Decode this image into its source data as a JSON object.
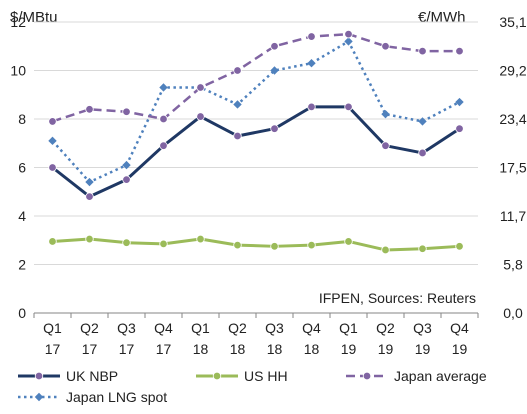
{
  "chart_data": {
    "type": "line",
    "categories": [
      [
        "Q1",
        "17"
      ],
      [
        "Q2",
        "17"
      ],
      [
        "Q3",
        "17"
      ],
      [
        "Q4",
        "17"
      ],
      [
        "Q1",
        "18"
      ],
      [
        "Q2",
        "18"
      ],
      [
        "Q3",
        "18"
      ],
      [
        "Q4",
        "18"
      ],
      [
        "Q1",
        "19"
      ],
      [
        "Q2",
        "19"
      ],
      [
        "Q3",
        "19"
      ],
      [
        "Q4",
        "19"
      ]
    ],
    "y_left": {
      "label": "$/MBtu",
      "range": [
        0,
        12
      ],
      "ticks": [
        "0",
        "2",
        "4",
        "6",
        "8",
        "10",
        "12"
      ]
    },
    "y_right": {
      "label": "€/MWh",
      "ticks": [
        "0,0",
        "5,8",
        "11,7",
        "17,5",
        "23,4",
        "29,2",
        "35,1"
      ]
    },
    "grid": "horizontal",
    "legend_position": "bottom",
    "annotation": "IFPEN, Sources: Reuters",
    "series": [
      {
        "name": "UK NBP",
        "style": "solid",
        "line_color": "#1f3864",
        "marker_color": "#8064a2",
        "values": [
          6.0,
          4.8,
          5.5,
          6.9,
          8.1,
          7.3,
          7.6,
          8.5,
          8.5,
          6.9,
          6.6,
          7.6
        ]
      },
      {
        "name": "US HH",
        "style": "solid",
        "line_color": "#9bbb59",
        "marker_color": "#9bbb59",
        "values": [
          2.95,
          3.05,
          2.9,
          2.85,
          3.05,
          2.8,
          2.75,
          2.8,
          2.95,
          2.6,
          2.65,
          2.75
        ]
      },
      {
        "name": "Japan average",
        "style": "dashed",
        "line_color": "#8064a2",
        "marker_color": "#8064a2",
        "values": [
          7.9,
          8.4,
          8.3,
          8.0,
          9.3,
          10.0,
          11.0,
          11.4,
          11.5,
          11.0,
          10.8,
          10.8
        ]
      },
      {
        "name": "Japan LNG spot",
        "style": "dotted",
        "line_color": "#4f81bd",
        "marker_color": "#4f81bd",
        "values": [
          7.1,
          5.4,
          6.1,
          9.3,
          9.3,
          8.6,
          10.0,
          10.3,
          11.2,
          8.2,
          7.9,
          8.7
        ]
      }
    ]
  }
}
